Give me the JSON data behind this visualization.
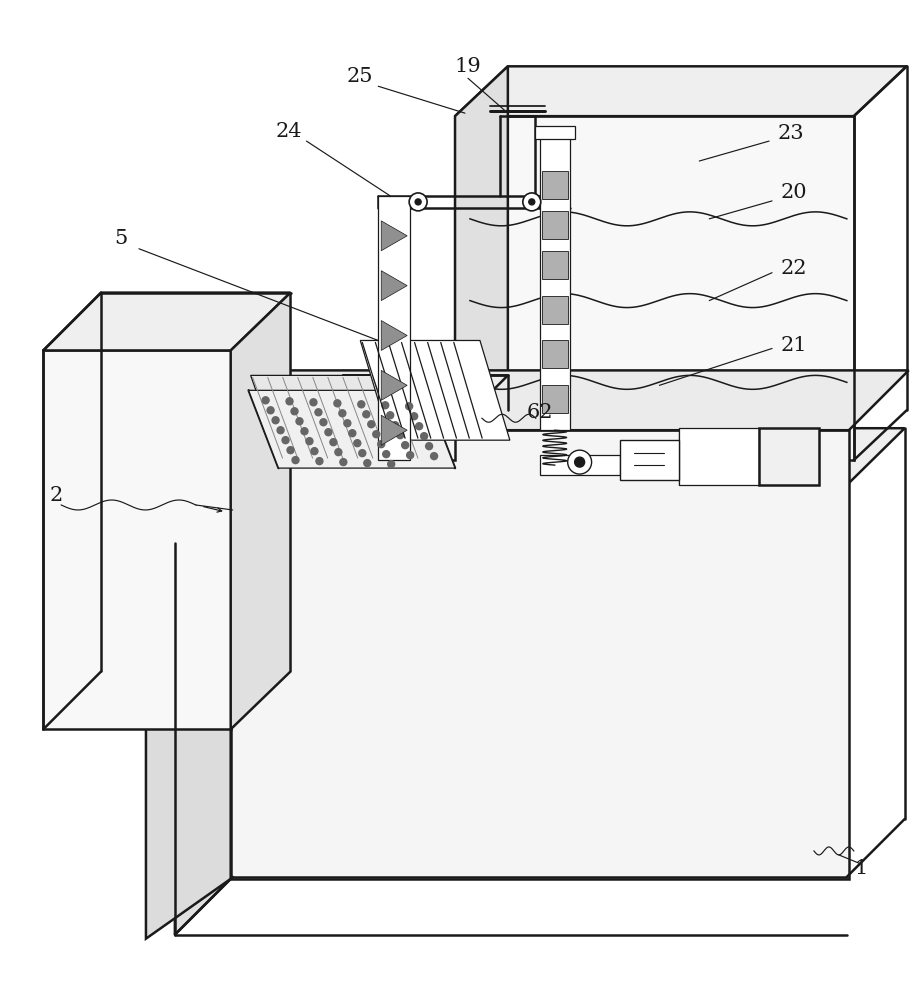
{
  "bg_color": "#ffffff",
  "line_color": "#1a1a1a",
  "lw_main": 1.8,
  "lw_thin": 0.9,
  "lw_leader": 0.8,
  "fig_width": 9.22,
  "fig_height": 10.0,
  "dpi": 100
}
